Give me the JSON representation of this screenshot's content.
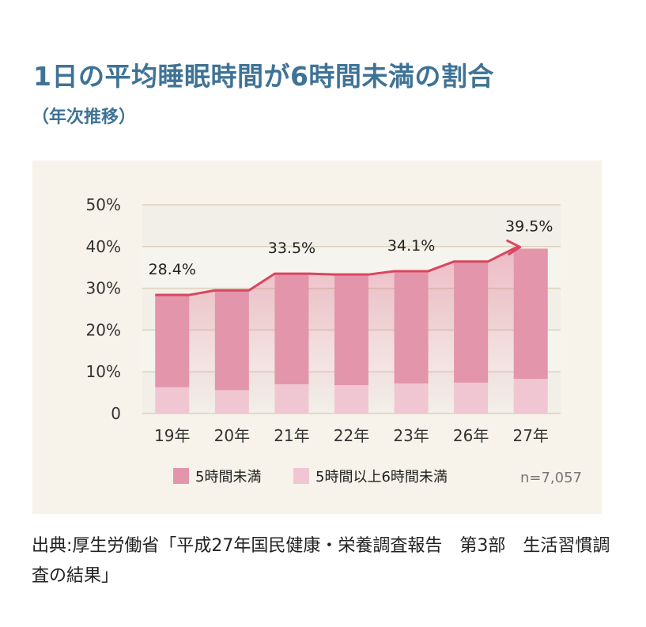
{
  "header": {
    "title": "1日の平均睡眠時間が6時間未満の割合",
    "subtitle": "（年次推移）"
  },
  "chart_data": {
    "type": "bar",
    "stacked": true,
    "categories": [
      "19年",
      "20年",
      "21年",
      "22年",
      "23年",
      "26年",
      "27年"
    ],
    "series": [
      {
        "name": "5時間未満",
        "color": "#e395ac",
        "values": [
          22.1,
          23.9,
          26.5,
          26.5,
          26.9,
          29.0,
          31.2
        ]
      },
      {
        "name": "5時間以上6時間未満",
        "color": "#f1c6d3",
        "values": [
          6.3,
          5.6,
          7.0,
          6.8,
          7.2,
          7.4,
          8.3
        ]
      }
    ],
    "totals": [
      28.4,
      29.5,
      33.5,
      33.3,
      34.1,
      36.4,
      39.5
    ],
    "data_labels": [
      {
        "index": 0,
        "text": "28.4%"
      },
      {
        "index": 2,
        "text": "33.5%"
      },
      {
        "index": 4,
        "text": "34.1%"
      },
      {
        "index": 6,
        "text": "39.5%"
      }
    ],
    "y_ticks": [
      "0",
      "10%",
      "20%",
      "30%",
      "40%",
      "50%"
    ],
    "ylim": [
      0,
      50
    ],
    "trend_color": "#d9465f",
    "legend_position": "bottom",
    "note": "n=7,057"
  },
  "footer": {
    "source": "出典:厚生労働省「平成27年国民健康・栄養調査報告　第3部　生活習慣調査の結果」"
  }
}
